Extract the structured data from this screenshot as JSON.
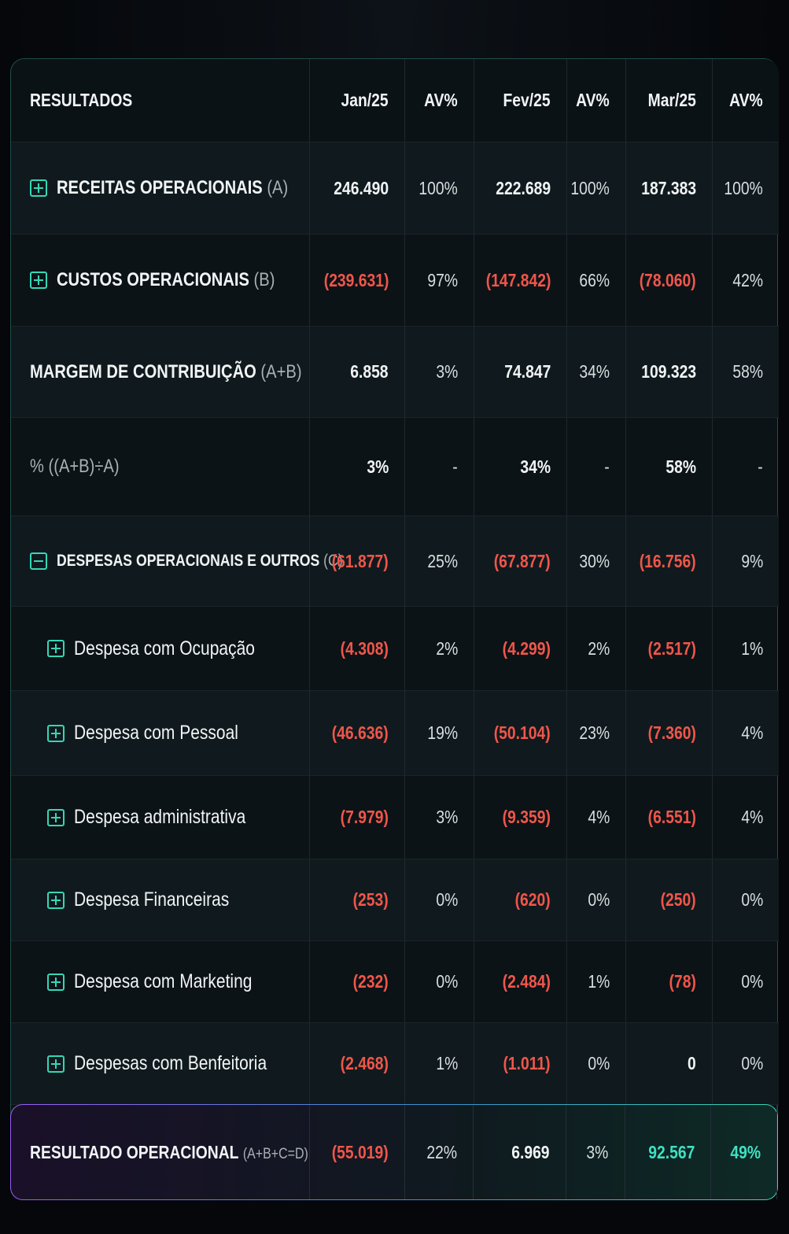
{
  "table": {
    "header": [
      "RESULTADOS",
      "Jan/25",
      "AV%",
      "Fev/25",
      "AV%",
      "Mar/25",
      "AV%"
    ],
    "rows": [
      {
        "label": "RECEITAS OPERACIONAIS",
        "suffix": "(A)",
        "cells": [
          "246.490",
          "100%",
          "222.689",
          "100%",
          "187.383",
          "100%"
        ]
      },
      {
        "label": "CUSTOS OPERACIONAIS",
        "suffix": "(B)",
        "cells": [
          "(239.631)",
          "97%",
          "(147.842)",
          "66%",
          "(78.060)",
          "42%"
        ]
      },
      {
        "label": "MARGEM DE CONTRIBUIÇÃO",
        "suffix": "(A+B)",
        "cells": [
          "6.858",
          "3%",
          "74.847",
          "34%",
          "109.323",
          "58%"
        ]
      },
      {
        "label": "% ((A+B)÷A)",
        "cells": [
          "3%",
          "-",
          "34%",
          "-",
          "58%",
          "-"
        ]
      },
      {
        "label": "DESPESAS OPERACIONAIS E OUTROS",
        "suffix": "(C)",
        "cells": [
          "(61.877)",
          "25%",
          "(67.877)",
          "30%",
          "(16.756)",
          "9%"
        ]
      },
      {
        "label": "Despesa com Ocupação",
        "cells": [
          "(4.308)",
          "2%",
          "(4.299)",
          "2%",
          "(2.517)",
          "1%"
        ]
      },
      {
        "label": "Despesa com Pessoal",
        "cells": [
          "(46.636)",
          "19%",
          "(50.104)",
          "23%",
          "(7.360)",
          "4%"
        ]
      },
      {
        "label": "Despesa administrativa",
        "cells": [
          "(7.979)",
          "3%",
          "(9.359)",
          "4%",
          "(6.551)",
          "4%"
        ]
      },
      {
        "label": "Despesa Financeiras",
        "cells": [
          "(253)",
          "0%",
          "(620)",
          "0%",
          "(250)",
          "0%"
        ]
      },
      {
        "label": "Despesa com Marketing",
        "cells": [
          "(232)",
          "0%",
          "(2.484)",
          "1%",
          "(78)",
          "0%"
        ]
      },
      {
        "label": "Despesas com Benfeitoria",
        "cells": [
          "(2.468)",
          "1%",
          "(1.011)",
          "0%",
          "0",
          "0%"
        ]
      }
    ],
    "total": {
      "label": "RESULTADO OPERACIONAL",
      "suffix": "(A+B+C=D)",
      "cells": [
        "(55.019)",
        "22%",
        "6.969",
        "3%",
        "92.567",
        "49%"
      ]
    }
  }
}
